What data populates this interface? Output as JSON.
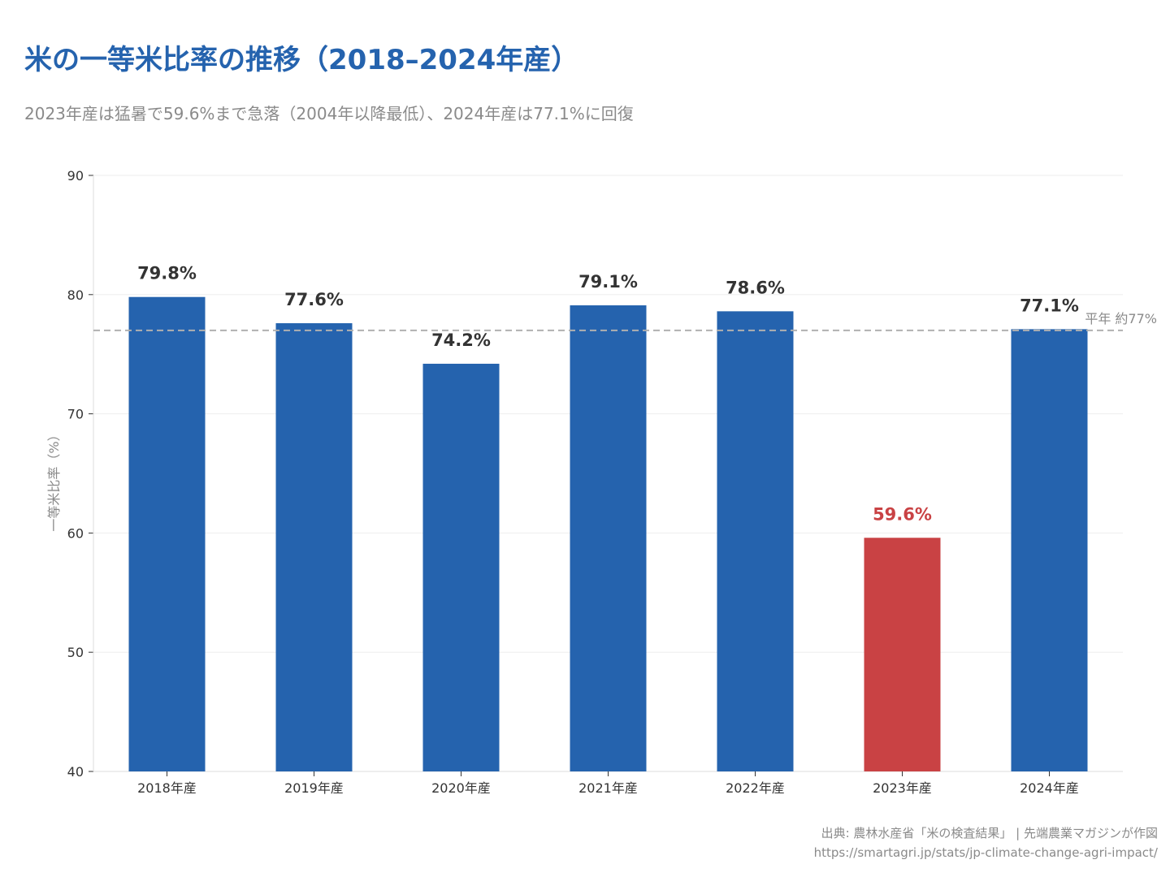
{
  "header": {
    "title": "米の一等米比率の推移（2018–2024年産）",
    "subtitle": "2023年産は猛暑で59.6%まで急落（2004年以降最低）、2024年産は77.1%に回復"
  },
  "footer": {
    "source": "出典: 農林水産省「米の検査結果」 | 先端農業マガジンが作図",
    "url": "https://smartagri.jp/stats/jp-climate-change-agri-impact/"
  },
  "colors": {
    "bar": "#2563ae",
    "highlight": "#c94244",
    "reference_line": "#b0b0b0",
    "grid": "#eeeeee"
  },
  "chart_data": {
    "type": "bar",
    "categories": [
      "2018年産",
      "2019年産",
      "2020年産",
      "2021年産",
      "2022年産",
      "2023年産",
      "2024年産"
    ],
    "values": [
      79.8,
      77.6,
      74.2,
      79.1,
      78.6,
      59.6,
      77.1
    ],
    "data_labels": [
      "79.8%",
      "77.6%",
      "74.2%",
      "79.1%",
      "78.6%",
      "59.6%",
      "77.1%"
    ],
    "highlight_index": 5,
    "ylabel": "一等米比率（%）",
    "ylim": [
      40,
      90
    ],
    "yticks": [
      40,
      50,
      60,
      70,
      80,
      90
    ],
    "grid": true,
    "reference_line": {
      "value": 77,
      "label": "平年 約77%"
    }
  }
}
